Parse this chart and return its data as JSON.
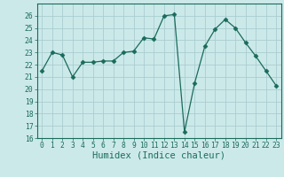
{
  "x": [
    0,
    1,
    2,
    3,
    4,
    5,
    6,
    7,
    8,
    9,
    10,
    11,
    12,
    13,
    14,
    15,
    16,
    17,
    18,
    19,
    20,
    21,
    22,
    23
  ],
  "y": [
    21.5,
    23.0,
    22.8,
    21.0,
    22.2,
    22.2,
    22.3,
    22.3,
    23.0,
    23.1,
    24.2,
    24.1,
    26.0,
    26.1,
    16.5,
    20.5,
    23.5,
    24.9,
    25.7,
    25.0,
    23.8,
    22.7,
    21.5,
    20.3
  ],
  "xlabel": "Humidex (Indice chaleur)",
  "ylim": [
    16,
    27
  ],
  "xlim": [
    -0.5,
    23.5
  ],
  "yticks": [
    16,
    17,
    18,
    19,
    20,
    21,
    22,
    23,
    24,
    25,
    26
  ],
  "xticks": [
    0,
    1,
    2,
    3,
    4,
    5,
    6,
    7,
    8,
    9,
    10,
    11,
    12,
    13,
    14,
    15,
    16,
    17,
    18,
    19,
    20,
    21,
    22,
    23
  ],
  "line_color": "#1a6b5a",
  "marker": "D",
  "marker_size": 2.5,
  "bg_color": "#cce9ea",
  "grid_color": "#aacdd0",
  "tick_label_color": "#1a6b5a",
  "xlabel_color": "#1a6b5a",
  "tick_fontsize": 5.8,
  "xlabel_fontsize": 7.5
}
